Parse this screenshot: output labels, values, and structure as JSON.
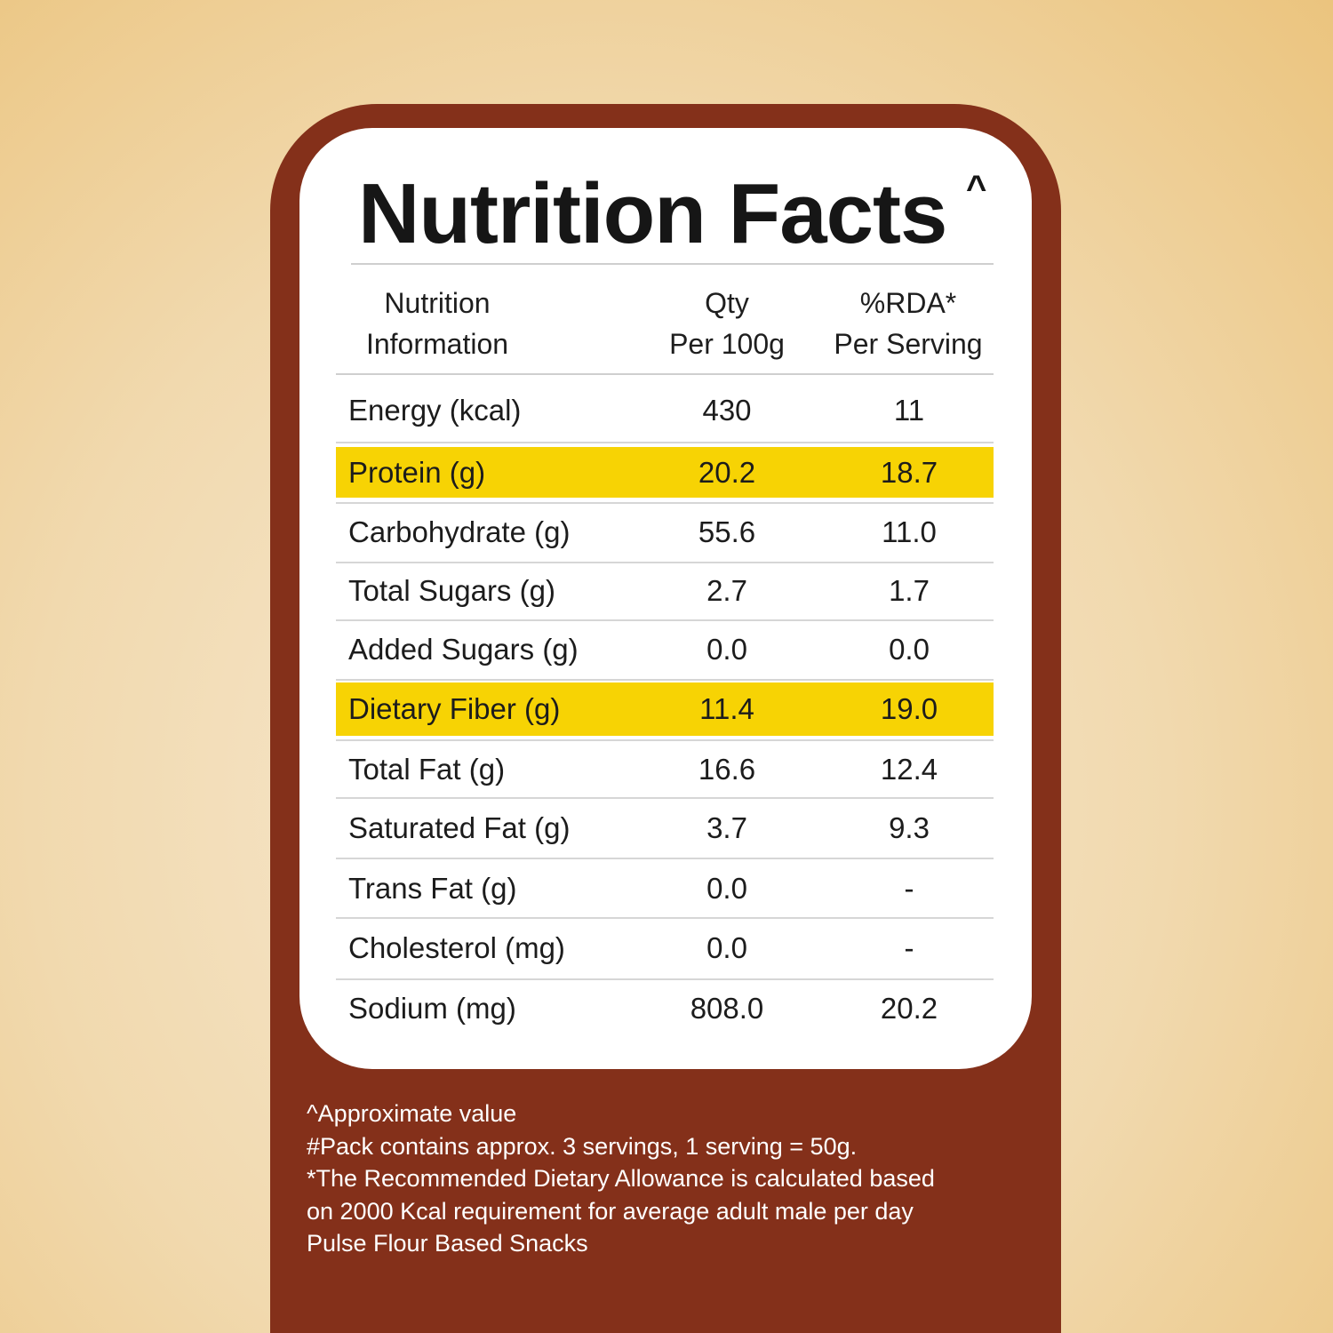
{
  "title": "Nutrition Facts",
  "title_mark": "^",
  "headers": {
    "name_line1": "Nutrition",
    "name_line2": "Information",
    "qty_line1": "Qty",
    "qty_line2": "Per 100g",
    "rda_line1": "%RDA*",
    "rda_line2": "Per Serving"
  },
  "rows": [
    {
      "name": "Energy (kcal)",
      "qty": "430",
      "rda": "11",
      "highlight": false
    },
    {
      "name": "Protein (g)",
      "qty": "20.2",
      "rda": "18.7",
      "highlight": true
    },
    {
      "name": "Carbohydrate (g)",
      "qty": "55.6",
      "rda": "11.0",
      "highlight": false
    },
    {
      "name": "Total Sugars (g)",
      "qty": "2.7",
      "rda": "1.7",
      "highlight": false
    },
    {
      "name": "Added Sugars (g)",
      "qty": "0.0",
      "rda": "0.0",
      "highlight": false
    },
    {
      "name": "Dietary Fiber (g)",
      "qty": "11.4",
      "rda": "19.0",
      "highlight": true
    },
    {
      "name": "Total Fat (g)",
      "qty": "16.6",
      "rda": "12.4",
      "highlight": false
    },
    {
      "name": "Saturated Fat (g)",
      "qty": "3.7",
      "rda": "9.3",
      "highlight": false
    },
    {
      "name": "Trans Fat (g)",
      "qty": "0.0",
      "rda": "-",
      "highlight": false
    },
    {
      "name": "Cholesterol (mg)",
      "qty": "0.0",
      "rda": "-",
      "highlight": false
    },
    {
      "name": "Sodium (mg)",
      "qty": "808.0",
      "rda": "20.2",
      "highlight": false
    }
  ],
  "footnotes": [
    "^Approximate value",
    "#Pack contains approx. 3 servings, 1 serving = 50g.",
    "*The Recommended Dietary Allowance is calculated based",
    "on 2000 Kcal requirement for average adult male per day",
    "Pulse Flour Based Snacks"
  ],
  "colors": {
    "panel": "#84301a",
    "highlight": "#f7d304",
    "card": "#ffffff"
  }
}
